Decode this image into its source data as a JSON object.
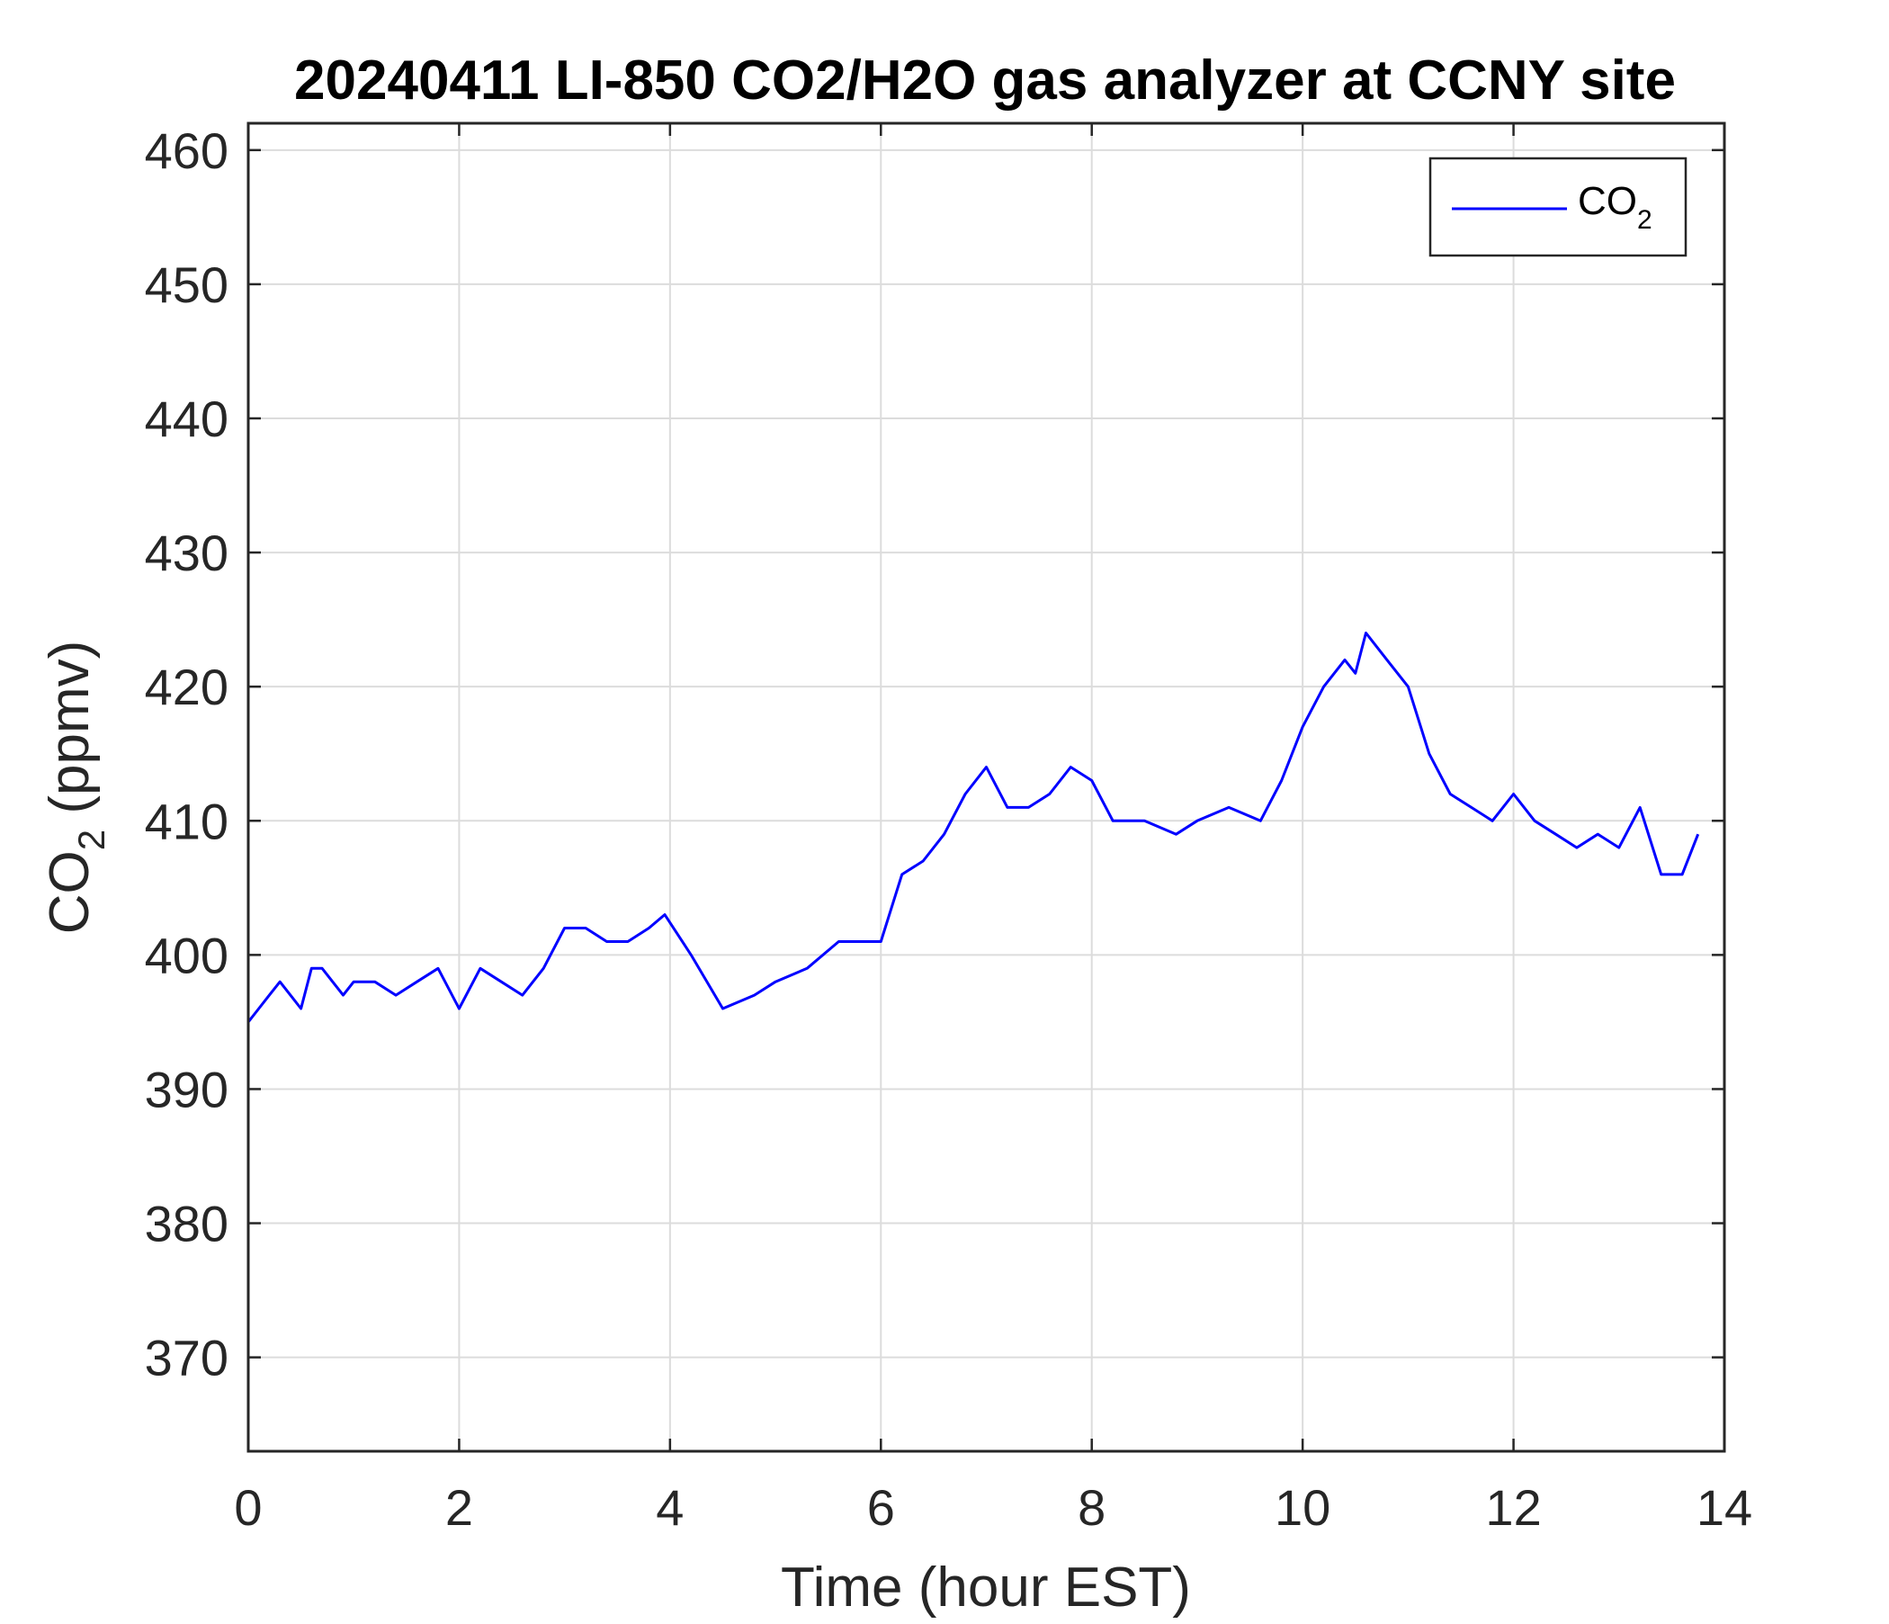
{
  "chart_data": {
    "type": "line",
    "title": "20240411 LI-850 CO2/H2O gas analyzer at CCNY site",
    "xlabel": "Time (hour EST)",
    "ylabel_main": "CO",
    "ylabel_sub": "2",
    "ylabel_unit": " (ppmv)",
    "xlim": [
      0,
      14
    ],
    "ylim": [
      363,
      462
    ],
    "xticks": [
      0,
      2,
      4,
      6,
      8,
      10,
      12,
      14
    ],
    "xtick_labels": [
      "0",
      "2",
      "4",
      "6",
      "8",
      "10",
      "12",
      "14"
    ],
    "yticks": [
      370,
      380,
      390,
      400,
      410,
      420,
      430,
      440,
      450,
      460
    ],
    "ytick_labels": [
      "370",
      "380",
      "390",
      "400",
      "410",
      "420",
      "430",
      "440",
      "450",
      "460"
    ],
    "grid": true,
    "legend_position": "top-right",
    "series": [
      {
        "name": "CO2",
        "legend_main": "CO",
        "legend_sub": "2",
        "color": "#0000ff",
        "x": [
          0,
          0.1,
          0.2,
          0.3,
          0.4,
          0.5,
          0.6,
          0.7,
          0.8,
          0.9,
          1.0,
          1.2,
          1.4,
          1.6,
          1.8,
          2.0,
          2.2,
          2.4,
          2.6,
          2.8,
          3.0,
          3.2,
          3.4,
          3.6,
          3.8,
          3.95,
          4.2,
          4.5,
          4.8,
          5.0,
          5.3,
          5.6,
          5.8,
          6.0,
          6.2,
          6.4,
          6.6,
          6.8,
          7.0,
          7.2,
          7.4,
          7.6,
          7.8,
          8.0,
          8.2,
          8.5,
          8.8,
          9.0,
          9.3,
          9.6,
          9.8,
          10.0,
          10.2,
          10.4,
          10.5,
          10.6,
          10.8,
          11.0,
          11.2,
          11.4,
          11.6,
          11.8,
          12.0,
          12.2,
          12.4,
          12.6,
          12.8,
          13.0,
          13.2,
          13.4,
          13.6,
          13.75
        ],
        "y": [
          395,
          396,
          397,
          398,
          397,
          396,
          399,
          399,
          398,
          397,
          398,
          398,
          397,
          398,
          399,
          396,
          399,
          398,
          397,
          399,
          402,
          402,
          401,
          401,
          402,
          403,
          400,
          396,
          397,
          398,
          399,
          401,
          401,
          401,
          406,
          407,
          409,
          412,
          414,
          411,
          411,
          412,
          414,
          413,
          410,
          410,
          409,
          410,
          411,
          410,
          413,
          417,
          420,
          422,
          421,
          424,
          422,
          420,
          415,
          412,
          411,
          410,
          412,
          410,
          409,
          408,
          409,
          408,
          411,
          406,
          406,
          409
        ]
      }
    ]
  }
}
